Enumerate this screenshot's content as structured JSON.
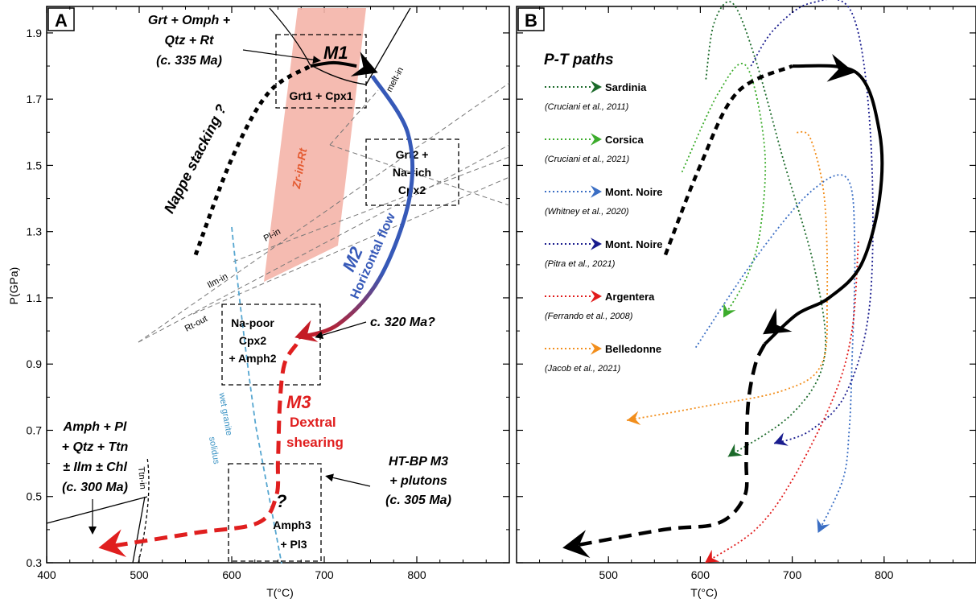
{
  "chart_data": [
    {
      "type": "scatter",
      "panel": "A",
      "xlabel": "T(°C)",
      "ylabel": "P(GPa)",
      "xlim": [
        400,
        900
      ],
      "ylim": [
        0.3,
        1.98
      ],
      "xticks": [
        "400",
        "500",
        "600",
        "700",
        "800"
      ],
      "yticks": [
        "0.3",
        "0.5",
        "0.7",
        "0.9",
        "1.1",
        "1.3",
        "1.5",
        "1.7",
        "1.9"
      ],
      "stages": {
        "m1": "M1",
        "m2": "M2",
        "m3": "M3",
        "horizontal_flow": "Horizontal flow",
        "dextral": "Dextral",
        "shearing": "shearing",
        "nappe_stacking": "Nappe stacking ?",
        "question": "?"
      },
      "annotations": {
        "m1_assemblage": [
          "Grt + Omph +",
          "Qtz + Rt",
          "(c. 335 Ma)"
        ],
        "age_320": "c. 320 Ma?",
        "late_assemblage": [
          "Amph + Pl",
          "+ Qtz + Ttn",
          "± Ilm ± Chl",
          "(c. 300 Ma)"
        ],
        "htbp": [
          "HT-BP M3",
          "+ plutons",
          "(c. 305 Ma)"
        ]
      },
      "boxes": {
        "grt1": "Grt1 + Cpx1",
        "grt2": [
          "Grt2 +",
          "Na-rich",
          "Cpx2"
        ],
        "napoor": [
          "Na-poor",
          "Cpx2",
          "+ Amph2"
        ],
        "amph3": [
          "Amph3",
          "+ Pl3"
        ]
      },
      "reaction_labels": {
        "melt_in": "melt-in",
        "pl_in": "Pl-in",
        "ilm_in": "Ilm-in",
        "rt_out": "Rt-out",
        "ttn_in": "Ttn-in",
        "zr_in_rt": "Zr-in-Rt",
        "wet_granite": "wet granite",
        "solidus": "solidus"
      },
      "path_A": {
        "nappe": [
          [
            561,
            1.23
          ],
          [
            600,
            1.52
          ],
          [
            640,
            1.72
          ],
          [
            685,
            1.8
          ]
        ],
        "m1_arrow": [
          [
            685,
            1.8
          ],
          [
            710,
            1.81
          ],
          [
            735,
            1.8
          ]
        ],
        "m2": [
          [
            752,
            1.77
          ],
          [
            790,
            1.6
          ],
          [
            792,
            1.4
          ],
          [
            760,
            1.16
          ],
          [
            715,
            1.02
          ],
          [
            672,
            0.98
          ]
        ],
        "m3": [
          [
            670,
            0.96
          ],
          [
            657,
            0.9
          ],
          [
            652,
            0.78
          ],
          [
            650,
            0.61
          ],
          [
            648,
            0.5
          ],
          [
            628,
            0.42
          ],
          [
            560,
            0.39
          ],
          [
            470,
            0.35
          ]
        ]
      }
    },
    {
      "type": "line",
      "panel": "B",
      "title": "P-T paths",
      "xlabel": "T(°C)",
      "xlim": [
        400,
        900
      ],
      "ylim": [
        0.3,
        1.98
      ],
      "xticks": [
        "500",
        "600",
        "700",
        "800"
      ],
      "series": [
        {
          "name": "Sardinia",
          "ref": "(Cruciani et al., 2011)",
          "color": "#1b6a2a",
          "points": [
            [
              606,
              1.76
            ],
            [
              615,
              1.93
            ],
            [
              635,
              1.99
            ],
            [
              660,
              1.82
            ],
            [
              690,
              1.52
            ],
            [
              725,
              1.18
            ],
            [
              735,
              0.92
            ],
            [
              700,
              0.75
            ],
            [
              630,
              0.62
            ]
          ]
        },
        {
          "name": "Corsica",
          "ref": "(Cruciani et al., 2021)",
          "color": "#3cac2c",
          "points": [
            [
              580,
              1.48
            ],
            [
              620,
              1.72
            ],
            [
              650,
              1.8
            ],
            [
              670,
              1.55
            ],
            [
              665,
              1.3
            ],
            [
              650,
              1.16
            ],
            [
              625,
              1.04
            ]
          ]
        },
        {
          "name": "Mont. Noire",
          "ref": "(Whitney et al., 2020)",
          "color": "#3a6ec4",
          "points": [
            [
              595,
              0.95
            ],
            [
              660,
              1.22
            ],
            [
              720,
              1.42
            ],
            [
              760,
              1.46
            ],
            [
              768,
              1.25
            ],
            [
              765,
              0.9
            ],
            [
              762,
              0.7
            ],
            [
              755,
              0.55
            ],
            [
              728,
              0.39
            ]
          ]
        },
        {
          "name": "Mont. Noire",
          "ref": "(Pitra et al., 2021)",
          "color": "#191c8e",
          "points": [
            [
              655,
              1.8
            ],
            [
              680,
              1.91
            ],
            [
              720,
              1.99
            ],
            [
              765,
              1.96
            ],
            [
              785,
              1.6
            ],
            [
              785,
              1.1
            ],
            [
              760,
              0.82
            ],
            [
              720,
              0.7
            ],
            [
              680,
              0.66
            ]
          ]
        },
        {
          "name": "Argentera",
          "ref": "(Ferrando et al., 2008)",
          "color": "#e11b1b",
          "points": [
            [
              772,
              1.27
            ],
            [
              765,
              1.0
            ],
            [
              745,
              0.8
            ],
            [
              700,
              0.55
            ],
            [
              660,
              0.4
            ],
            [
              605,
              0.3
            ]
          ]
        },
        {
          "name": "Belledonne",
          "ref": "(Jacob et al., 2021)",
          "color": "#f28e1c",
          "points": [
            [
              705,
              1.6
            ],
            [
              720,
              1.58
            ],
            [
              735,
              1.4
            ],
            [
              738,
              1.1
            ],
            [
              732,
              0.9
            ],
            [
              690,
              0.82
            ],
            [
              600,
              0.77
            ],
            [
              520,
              0.73
            ]
          ]
        }
      ],
      "black_path": [
        [
          562,
          1.23
        ],
        [
          600,
          1.5
        ],
        [
          640,
          1.72
        ],
        [
          700,
          1.8
        ],
        [
          770,
          1.78
        ],
        [
          795,
          1.6
        ],
        [
          795,
          1.4
        ],
        [
          775,
          1.2
        ],
        [
          740,
          1.1
        ],
        [
          705,
          1.05
        ],
        [
          670,
          0.96
        ],
        [
          660,
          0.9
        ],
        [
          652,
          0.78
        ],
        [
          650,
          0.61
        ],
        [
          648,
          0.5
        ],
        [
          620,
          0.42
        ],
        [
          560,
          0.4
        ],
        [
          460,
          0.35
        ]
      ]
    }
  ]
}
